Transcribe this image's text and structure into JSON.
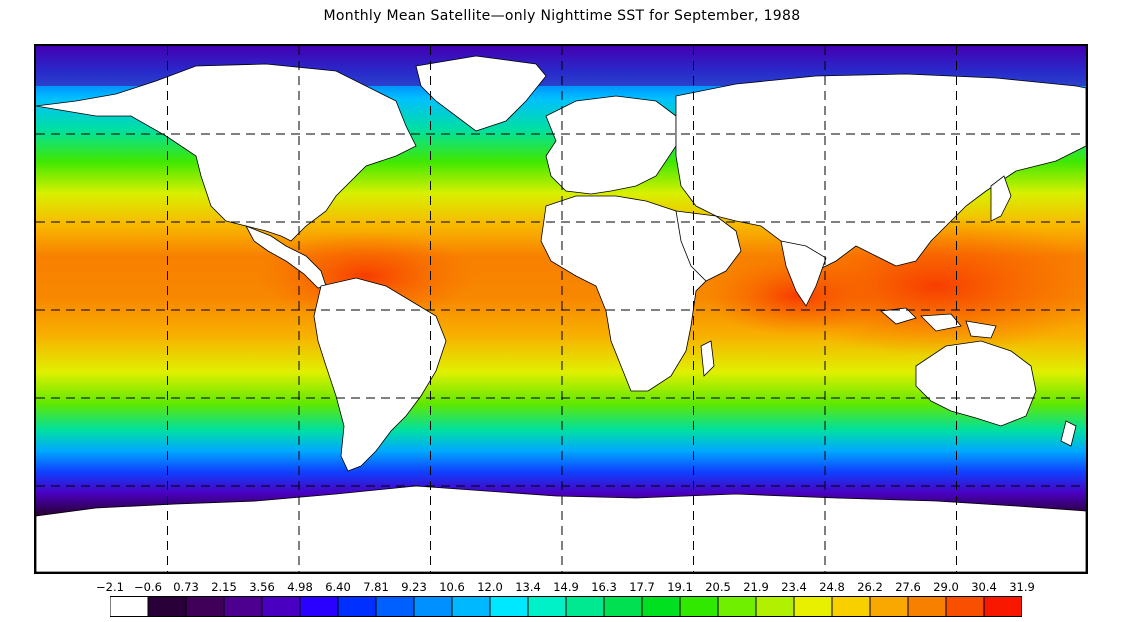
{
  "title": "Monthly Mean Satellite—only Nighttime SST for September, 1988",
  "map": {
    "projection": "cylindrical",
    "gridlines": "dashed",
    "land_color": "#ffffff",
    "boundary_color": "#000000"
  },
  "legend": {
    "tick_labels": [
      "−2.1",
      "−0.6",
      "0.73",
      "2.15",
      "3.56",
      "4.98",
      "6.40",
      "7.81",
      "9.23",
      "10.6",
      "12.0",
      "13.4",
      "14.9",
      "16.3",
      "17.7",
      "19.1",
      "20.5",
      "21.9",
      "23.4",
      "24.8",
      "26.2",
      "27.6",
      "29.0",
      "30.4",
      "31.9"
    ],
    "colors": [
      "#ffffff",
      "#2a0038",
      "#40005a",
      "#4d0090",
      "#4a00c0",
      "#2a00ff",
      "#0030ff",
      "#0060ff",
      "#0090ff",
      "#00b8ff",
      "#00e8ff",
      "#00f0c8",
      "#00e890",
      "#00e050",
      "#00e020",
      "#30e800",
      "#70f000",
      "#b0f000",
      "#e8f000",
      "#f8d000",
      "#f8a800",
      "#f88000",
      "#f85000",
      "#f81800"
    ]
  }
}
